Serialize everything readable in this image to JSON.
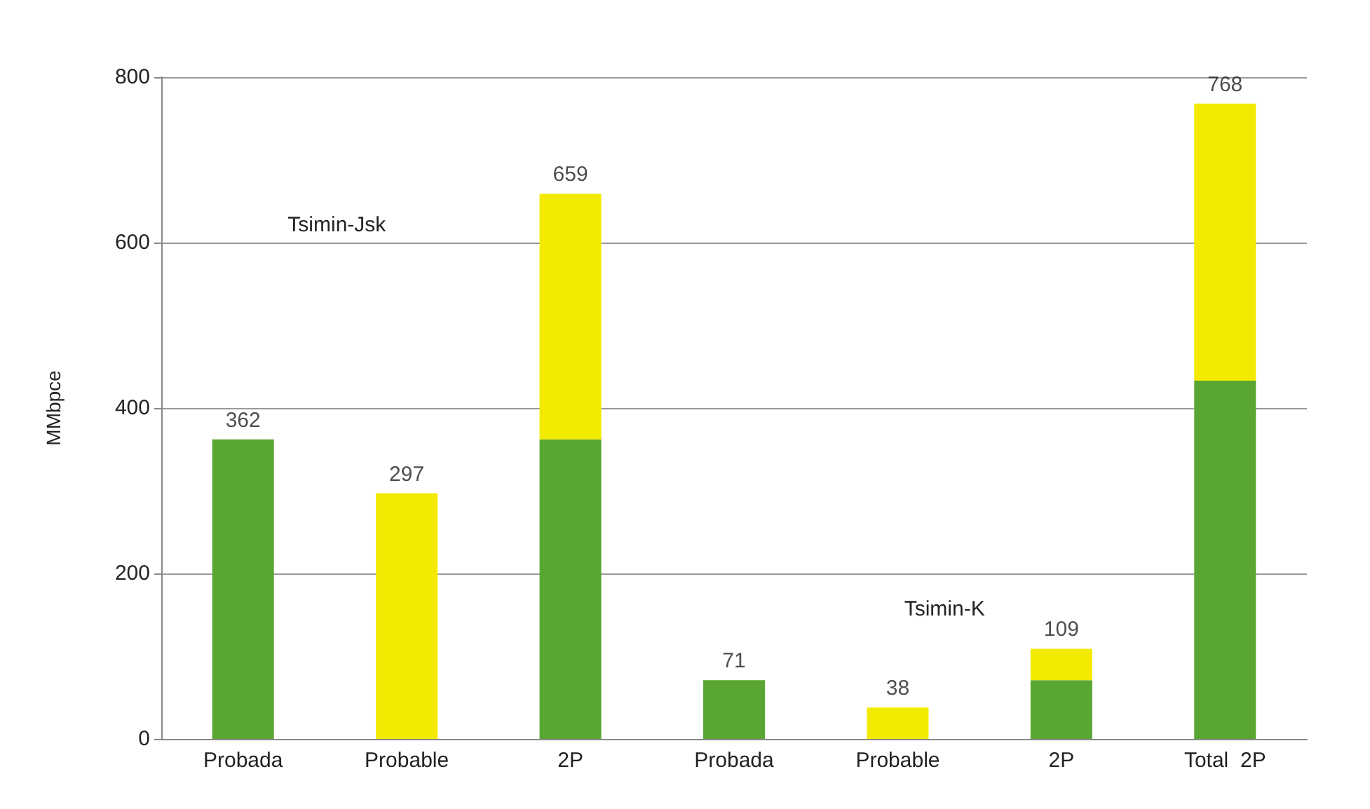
{
  "chart_data": {
    "type": "bar",
    "ylabel": "MMbpce",
    "categories": [
      "Probada",
      "Probable",
      "2P",
      "Probada",
      "Probable",
      "2P",
      "Total  2P"
    ],
    "stacked": true,
    "series": [
      {
        "color": "#5aa632",
        "values": [
          362,
          null,
          362,
          71,
          null,
          71,
          433
        ]
      },
      {
        "color": "#f2ea00",
        "values": [
          null,
          297,
          297,
          null,
          38,
          38,
          335
        ]
      }
    ],
    "totals": [
      "362",
      "297",
      "659",
      "71",
      "38",
      "109",
      "768"
    ],
    "ylim": [
      0,
      800
    ],
    "yticks": [
      0,
      200,
      400,
      600,
      800
    ],
    "grid": "y",
    "annotations": [
      "Tsimin-Jsk",
      "Tsimin-K"
    ]
  }
}
